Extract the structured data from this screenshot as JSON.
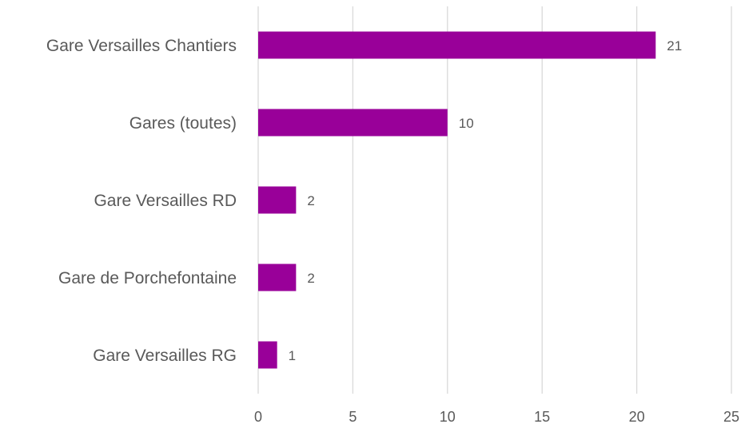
{
  "chart_data": {
    "type": "hbar",
    "categories": [
      "Gare Versailles Chantiers",
      "Gares (toutes)",
      "Gare Versailles RD",
      "Gare de Porchefontaine",
      "Gare Versailles RG"
    ],
    "values": [
      21,
      10,
      2,
      2,
      1
    ],
    "color": "#990099",
    "xlim": [
      0,
      25
    ],
    "xticks": [
      0,
      5,
      10,
      15,
      20,
      25
    ],
    "grid": true
  }
}
